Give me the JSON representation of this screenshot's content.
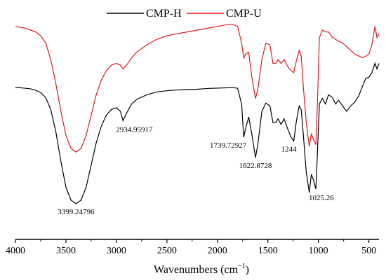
{
  "chart_data": {
    "type": "line",
    "title": "",
    "xlabel": "Wavenumbers (cm",
    "xlabel_sup": "−1",
    "xlabel_close": ")",
    "ylabel": "",
    "xlim": [
      4000,
      400
    ],
    "ylim": [
      0,
      1
    ],
    "x_reversed": true,
    "x_ticks": [
      4000,
      3500,
      3000,
      2500,
      2000,
      1500,
      1000,
      500
    ],
    "grid": false,
    "legend_position": "top-center",
    "series": [
      {
        "name": "CMP-H",
        "color": "#000000",
        "points": [
          [
            4000,
            0.69
          ],
          [
            3950,
            0.688
          ],
          [
            3900,
            0.685
          ],
          [
            3850,
            0.682
          ],
          [
            3800,
            0.675
          ],
          [
            3750,
            0.662
          ],
          [
            3700,
            0.635
          ],
          [
            3650,
            0.57
          ],
          [
            3600,
            0.45
          ],
          [
            3550,
            0.29
          ],
          [
            3500,
            0.15
          ],
          [
            3450,
            0.08
          ],
          [
            3400,
            0.06
          ],
          [
            3350,
            0.08
          ],
          [
            3300,
            0.15
          ],
          [
            3250,
            0.27
          ],
          [
            3200,
            0.39
          ],
          [
            3150,
            0.48
          ],
          [
            3100,
            0.54
          ],
          [
            3050,
            0.57
          ],
          [
            3000,
            0.58
          ],
          [
            2960,
            0.56
          ],
          [
            2934.96,
            0.51
          ],
          [
            2900,
            0.55
          ],
          [
            2850,
            0.6
          ],
          [
            2800,
            0.625
          ],
          [
            2700,
            0.65
          ],
          [
            2600,
            0.665
          ],
          [
            2500,
            0.672
          ],
          [
            2400,
            0.676
          ],
          [
            2300,
            0.678
          ],
          [
            2200,
            0.68
          ],
          [
            2100,
            0.684
          ],
          [
            2000,
            0.686
          ],
          [
            1900,
            0.688
          ],
          [
            1850,
            0.69
          ],
          [
            1800,
            0.685
          ],
          [
            1760,
            0.6
          ],
          [
            1739.73,
            0.42
          ],
          [
            1720,
            0.47
          ],
          [
            1690,
            0.53
          ],
          [
            1660,
            0.44
          ],
          [
            1622.87,
            0.31
          ],
          [
            1600,
            0.38
          ],
          [
            1560,
            0.56
          ],
          [
            1520,
            0.605
          ],
          [
            1480,
            0.59
          ],
          [
            1450,
            0.5
          ],
          [
            1420,
            0.5
          ],
          [
            1400,
            0.52
          ],
          [
            1370,
            0.49
          ],
          [
            1340,
            0.52
          ],
          [
            1300,
            0.46
          ],
          [
            1270,
            0.42
          ],
          [
            1244,
            0.4
          ],
          [
            1220,
            0.5
          ],
          [
            1190,
            0.59
          ],
          [
            1170,
            0.57
          ],
          [
            1150,
            0.44
          ],
          [
            1120,
            0.23
          ],
          [
            1090,
            0.12
          ],
          [
            1070,
            0.22
          ],
          [
            1050,
            0.19
          ],
          [
            1025.26,
            0.14
          ],
          [
            1010,
            0.33
          ],
          [
            990,
            0.6
          ],
          [
            960,
            0.63
          ],
          [
            930,
            0.6
          ],
          [
            900,
            0.65
          ],
          [
            860,
            0.635
          ],
          [
            830,
            0.6
          ],
          [
            800,
            0.62
          ],
          [
            760,
            0.59
          ],
          [
            720,
            0.56
          ],
          [
            680,
            0.59
          ],
          [
            640,
            0.61
          ],
          [
            600,
            0.645
          ],
          [
            560,
            0.7
          ],
          [
            530,
            0.74
          ],
          [
            500,
            0.745
          ],
          [
            470,
            0.77
          ],
          [
            440,
            0.82
          ],
          [
            420,
            0.79
          ],
          [
            400,
            0.82
          ]
        ]
      },
      {
        "name": "CMP-U",
        "color": "#e31a1c",
        "points": [
          [
            4000,
            1.02
          ],
          [
            3950,
            1.015
          ],
          [
            3900,
            1.01
          ],
          [
            3850,
            1.0
          ],
          [
            3800,
            0.99
          ],
          [
            3750,
            0.97
          ],
          [
            3700,
            0.93
          ],
          [
            3650,
            0.84
          ],
          [
            3600,
            0.71
          ],
          [
            3550,
            0.56
          ],
          [
            3500,
            0.43
          ],
          [
            3450,
            0.36
          ],
          [
            3400,
            0.34
          ],
          [
            3350,
            0.36
          ],
          [
            3300,
            0.43
          ],
          [
            3250,
            0.54
          ],
          [
            3200,
            0.65
          ],
          [
            3150,
            0.73
          ],
          [
            3100,
            0.78
          ],
          [
            3050,
            0.81
          ],
          [
            3000,
            0.82
          ],
          [
            2960,
            0.81
          ],
          [
            2934.96,
            0.79
          ],
          [
            2900,
            0.81
          ],
          [
            2850,
            0.85
          ],
          [
            2800,
            0.88
          ],
          [
            2700,
            0.92
          ],
          [
            2600,
            0.95
          ],
          [
            2500,
            0.97
          ],
          [
            2400,
            0.98
          ],
          [
            2300,
            0.99
          ],
          [
            2200,
            1.0
          ],
          [
            2100,
            1.01
          ],
          [
            2000,
            1.02
          ],
          [
            1900,
            1.03
          ],
          [
            1850,
            1.03
          ],
          [
            1800,
            1.02
          ],
          [
            1760,
            0.93
          ],
          [
            1739.73,
            0.85
          ],
          [
            1720,
            0.87
          ],
          [
            1690,
            0.88
          ],
          [
            1660,
            0.75
          ],
          [
            1622.87,
            0.63
          ],
          [
            1600,
            0.68
          ],
          [
            1560,
            0.84
          ],
          [
            1520,
            0.93
          ],
          [
            1480,
            0.92
          ],
          [
            1450,
            0.82
          ],
          [
            1420,
            0.82
          ],
          [
            1400,
            0.84
          ],
          [
            1370,
            0.82
          ],
          [
            1340,
            0.84
          ],
          [
            1300,
            0.8
          ],
          [
            1270,
            0.78
          ],
          [
            1244,
            0.77
          ],
          [
            1220,
            0.83
          ],
          [
            1190,
            0.89
          ],
          [
            1170,
            0.86
          ],
          [
            1150,
            0.7
          ],
          [
            1120,
            0.5
          ],
          [
            1090,
            0.37
          ],
          [
            1070,
            0.44
          ],
          [
            1050,
            0.41
          ],
          [
            1025.26,
            0.38
          ],
          [
            1010,
            0.6
          ],
          [
            990,
            0.96
          ],
          [
            960,
            1.0
          ],
          [
            930,
            0.99
          ],
          [
            900,
            0.99
          ],
          [
            860,
            0.96
          ],
          [
            830,
            0.95
          ],
          [
            800,
            0.94
          ],
          [
            760,
            0.93
          ],
          [
            720,
            0.91
          ],
          [
            680,
            0.89
          ],
          [
            640,
            0.87
          ],
          [
            600,
            0.86
          ],
          [
            560,
            0.85
          ],
          [
            530,
            0.86
          ],
          [
            500,
            0.87
          ],
          [
            470,
            0.92
          ],
          [
            440,
            1.02
          ],
          [
            420,
            0.96
          ],
          [
            400,
            0.98
          ]
        ]
      }
    ],
    "annotations": [
      {
        "text": "3399.24796",
        "x": 3399.25,
        "y": 0.06,
        "anchor": "below"
      },
      {
        "text": "2934.95917",
        "x": 2934.96,
        "y": 0.51,
        "anchor": "below-right"
      },
      {
        "text": "1739.72927",
        "x": 1739.73,
        "y": 0.42,
        "anchor": "below-left"
      },
      {
        "text": "1622.8728",
        "x": 1622.87,
        "y": 0.31,
        "anchor": "below"
      },
      {
        "text": "1244",
        "x": 1244,
        "y": 0.4,
        "anchor": "below-left"
      },
      {
        "text": "1025.26",
        "x": 1025.26,
        "y": 0.14,
        "anchor": "below-right"
      }
    ]
  }
}
